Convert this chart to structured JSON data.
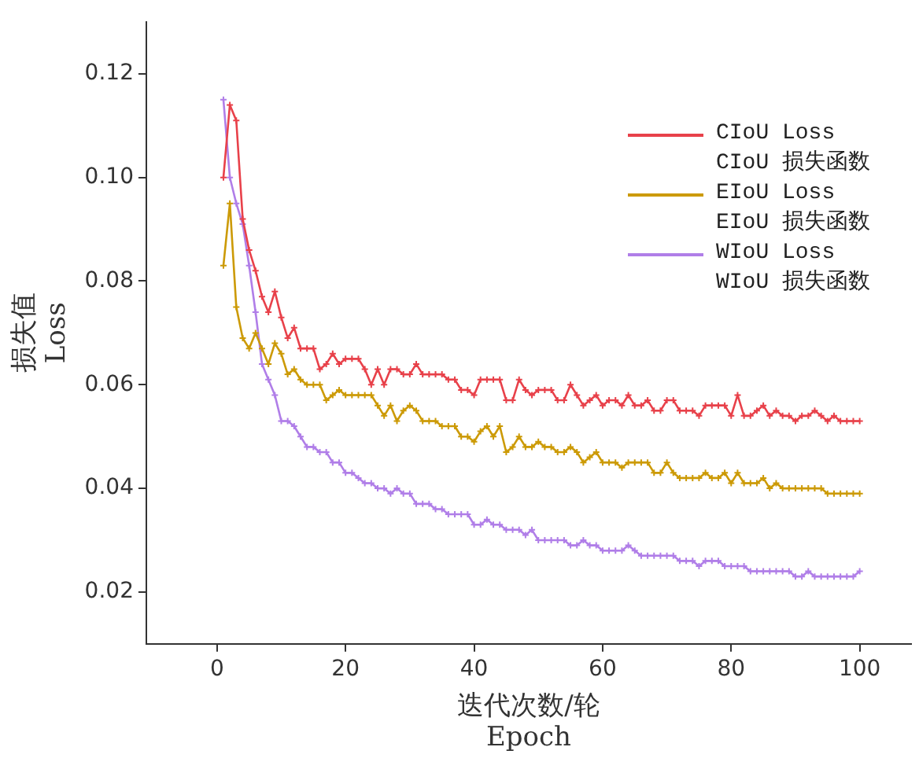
{
  "chart_data": {
    "type": "line",
    "xlabel": "迭代次数/轮\nEpoch",
    "ylabel": "损失值\nLoss",
    "x": [
      1,
      2,
      3,
      4,
      5,
      6,
      7,
      8,
      9,
      10,
      11,
      12,
      13,
      14,
      15,
      16,
      17,
      18,
      19,
      20,
      21,
      22,
      23,
      24,
      25,
      26,
      27,
      28,
      29,
      30,
      31,
      32,
      33,
      34,
      35,
      36,
      37,
      38,
      39,
      40,
      41,
      42,
      43,
      44,
      45,
      46,
      47,
      48,
      49,
      50,
      51,
      52,
      53,
      54,
      55,
      56,
      57,
      58,
      59,
      60,
      61,
      62,
      63,
      64,
      65,
      66,
      67,
      68,
      69,
      70,
      71,
      72,
      73,
      74,
      75,
      76,
      77,
      78,
      79,
      80,
      81,
      82,
      83,
      84,
      85,
      86,
      87,
      88,
      89,
      90,
      91,
      92,
      93,
      94,
      95,
      96,
      97,
      98,
      99,
      100
    ],
    "series": [
      {
        "name": "CIoU Loss\nCIoU 损失函数",
        "color": "#e8414a",
        "values": [
          0.1,
          0.114,
          0.111,
          0.092,
          0.086,
          0.082,
          0.077,
          0.074,
          0.078,
          0.073,
          0.069,
          0.071,
          0.067,
          0.067,
          0.067,
          0.063,
          0.064,
          0.066,
          0.064,
          0.065,
          0.065,
          0.065,
          0.063,
          0.06,
          0.063,
          0.06,
          0.063,
          0.063,
          0.062,
          0.062,
          0.064,
          0.062,
          0.062,
          0.062,
          0.062,
          0.061,
          0.061,
          0.059,
          0.059,
          0.058,
          0.061,
          0.061,
          0.061,
          0.061,
          0.057,
          0.057,
          0.061,
          0.059,
          0.058,
          0.059,
          0.059,
          0.059,
          0.057,
          0.057,
          0.06,
          0.058,
          0.056,
          0.057,
          0.058,
          0.056,
          0.057,
          0.057,
          0.056,
          0.058,
          0.056,
          0.056,
          0.057,
          0.055,
          0.055,
          0.057,
          0.057,
          0.055,
          0.055,
          0.055,
          0.054,
          0.056,
          0.056,
          0.056,
          0.056,
          0.054,
          0.058,
          0.054,
          0.054,
          0.055,
          0.056,
          0.054,
          0.055,
          0.054,
          0.054,
          0.053,
          0.054,
          0.054,
          0.055,
          0.054,
          0.053,
          0.054,
          0.053,
          0.053,
          0.053,
          0.053
        ]
      },
      {
        "name": "EIoU Loss\nEIoU 损失函数",
        "color": "#cc9a06",
        "values": [
          0.083,
          0.095,
          0.075,
          0.069,
          0.067,
          0.07,
          0.067,
          0.064,
          0.068,
          0.066,
          0.062,
          0.063,
          0.061,
          0.06,
          0.06,
          0.06,
          0.057,
          0.058,
          0.059,
          0.058,
          0.058,
          0.058,
          0.058,
          0.058,
          0.056,
          0.054,
          0.056,
          0.053,
          0.055,
          0.056,
          0.055,
          0.053,
          0.053,
          0.053,
          0.052,
          0.052,
          0.052,
          0.05,
          0.05,
          0.049,
          0.051,
          0.052,
          0.05,
          0.052,
          0.047,
          0.048,
          0.05,
          0.048,
          0.048,
          0.049,
          0.048,
          0.048,
          0.047,
          0.047,
          0.048,
          0.047,
          0.045,
          0.046,
          0.047,
          0.045,
          0.045,
          0.045,
          0.044,
          0.045,
          0.045,
          0.045,
          0.045,
          0.043,
          0.043,
          0.045,
          0.043,
          0.042,
          0.042,
          0.042,
          0.042,
          0.043,
          0.042,
          0.042,
          0.043,
          0.041,
          0.043,
          0.041,
          0.041,
          0.041,
          0.042,
          0.04,
          0.041,
          0.04,
          0.04,
          0.04,
          0.04,
          0.04,
          0.04,
          0.04,
          0.039,
          0.039,
          0.039,
          0.039,
          0.039,
          0.039
        ]
      },
      {
        "name": "WIoU Loss\nWIoU 损失函数",
        "color": "#b07ee8",
        "values": [
          0.115,
          0.1,
          0.095,
          0.091,
          0.083,
          0.074,
          0.064,
          0.061,
          0.058,
          0.053,
          0.053,
          0.052,
          0.05,
          0.048,
          0.048,
          0.047,
          0.047,
          0.045,
          0.045,
          0.043,
          0.043,
          0.042,
          0.041,
          0.041,
          0.04,
          0.04,
          0.039,
          0.04,
          0.039,
          0.039,
          0.037,
          0.037,
          0.037,
          0.036,
          0.036,
          0.035,
          0.035,
          0.035,
          0.035,
          0.033,
          0.033,
          0.034,
          0.033,
          0.033,
          0.032,
          0.032,
          0.032,
          0.031,
          0.032,
          0.03,
          0.03,
          0.03,
          0.03,
          0.03,
          0.029,
          0.029,
          0.03,
          0.029,
          0.029,
          0.028,
          0.028,
          0.028,
          0.028,
          0.029,
          0.028,
          0.027,
          0.027,
          0.027,
          0.027,
          0.027,
          0.027,
          0.026,
          0.026,
          0.026,
          0.025,
          0.026,
          0.026,
          0.026,
          0.025,
          0.025,
          0.025,
          0.025,
          0.024,
          0.024,
          0.024,
          0.024,
          0.024,
          0.024,
          0.024,
          0.023,
          0.023,
          0.024,
          0.023,
          0.023,
          0.023,
          0.023,
          0.023,
          0.023,
          0.023,
          0.024
        ]
      }
    ],
    "xlim": [
      -11,
      108
    ],
    "xticks": [
      0,
      20,
      40,
      60,
      80,
      100
    ],
    "ylim": [
      0.01,
      0.13
    ],
    "yticks": [
      0.02,
      0.04,
      0.06,
      0.08,
      {
        "value": 0.1,
        "label": "0.10"
      },
      0.12
    ],
    "grid": false,
    "legend": "top right",
    "marker": "cross",
    "line_style": "solid"
  }
}
